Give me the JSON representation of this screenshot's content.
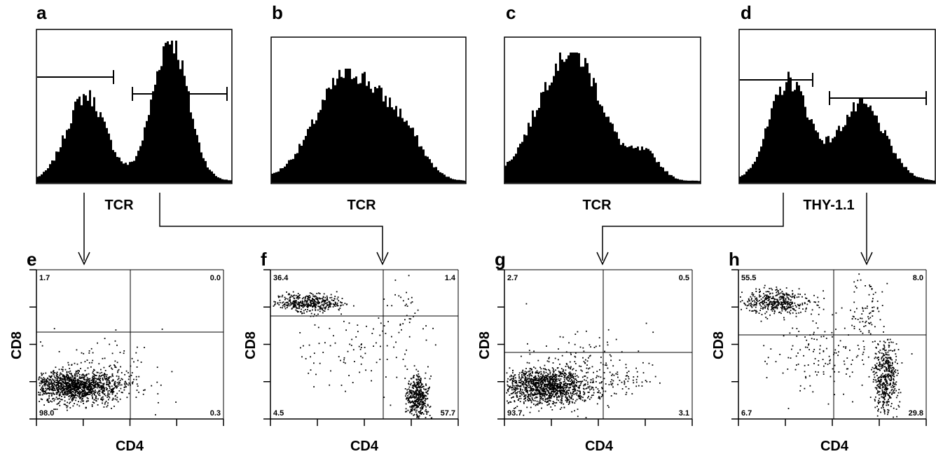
{
  "colors": {
    "ink": "#000000",
    "background": "#ffffff"
  },
  "histograms": [
    {
      "letter": "a",
      "xlabel": "TCR",
      "peaks": [
        [
          0.25,
          0.1,
          0.6
        ],
        [
          0.68,
          0.09,
          1.0
        ]
      ],
      "gates": true
    },
    {
      "letter": "b",
      "xlabel": "TCR",
      "peaks": [
        [
          0.4,
          0.17,
          0.95
        ],
        [
          0.68,
          0.1,
          0.3
        ]
      ],
      "gates": false
    },
    {
      "letter": "c",
      "xlabel": "TCR",
      "peaks": [
        [
          0.33,
          0.16,
          1.0
        ],
        [
          0.72,
          0.07,
          0.18
        ]
      ],
      "gates": false
    },
    {
      "letter": "d",
      "xlabel": "THY-1.1",
      "peaks": [
        [
          0.25,
          0.1,
          0.82
        ],
        [
          0.62,
          0.12,
          0.62
        ]
      ],
      "gates": true
    }
  ],
  "dotplots": [
    {
      "letter": "e",
      "xlabel": "CD4",
      "ylabel": "CD8",
      "quadrants": {
        "upper_left": "1.7",
        "upper_right": "0.0",
        "lower_left": "98.0",
        "lower_right": "0.3"
      }
    },
    {
      "letter": "f",
      "xlabel": "CD4",
      "ylabel": "CD8",
      "quadrants": {
        "upper_left": "36.4",
        "upper_right": "1.4",
        "lower_left": "4.5",
        "lower_right": "57.7"
      }
    },
    {
      "letter": "g",
      "xlabel": "CD4",
      "ylabel": "CD8",
      "quadrants": {
        "upper_left": "2.7",
        "upper_right": "0.5",
        "lower_left": "93.7",
        "lower_right": "3.1"
      }
    },
    {
      "letter": "h",
      "xlabel": "CD4",
      "ylabel": "CD8",
      "quadrants": {
        "upper_left": "55.5",
        "upper_right": "8.0",
        "lower_left": "6.7",
        "lower_right": "29.8"
      }
    }
  ]
}
